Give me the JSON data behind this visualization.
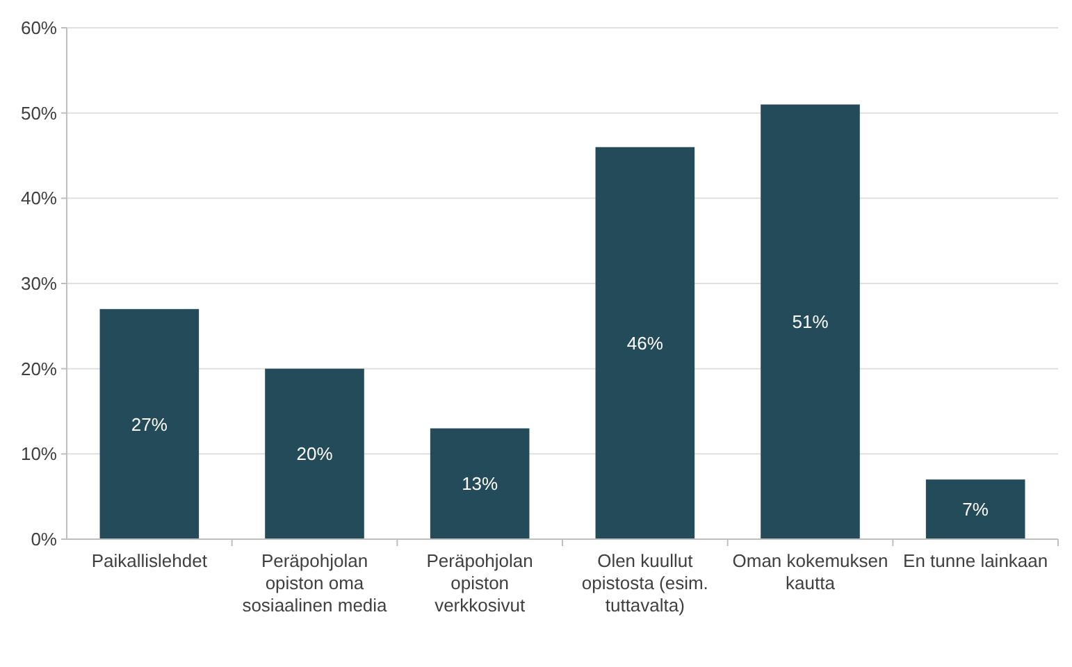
{
  "chart_data": {
    "type": "bar",
    "categories": [
      "Paikallislehdet",
      "Peräpohjolan opiston oma sosiaalinen media",
      "Peräpohjolan opiston verkkosivut",
      "Olen kuullut opistosta (esim. tuttavalta)",
      "Oman kokemuksen kautta",
      "En tunne lainkaan"
    ],
    "values": [
      27,
      20,
      13,
      46,
      51,
      7
    ],
    "value_labels": [
      "27%",
      "20%",
      "13%",
      "46%",
      "51%",
      "7%"
    ],
    "color": "#244b5a",
    "ylim": [
      0,
      60
    ],
    "yticks": [
      {
        "value": 0,
        "label": "0%"
      },
      {
        "value": 10,
        "label": "10%"
      },
      {
        "value": 20,
        "label": "20%"
      },
      {
        "value": 30,
        "label": "30%"
      },
      {
        "value": 40,
        "label": "40%"
      },
      {
        "value": 50,
        "label": "50%"
      },
      {
        "value": 60,
        "label": "60%"
      }
    ],
    "grid": "y"
  }
}
